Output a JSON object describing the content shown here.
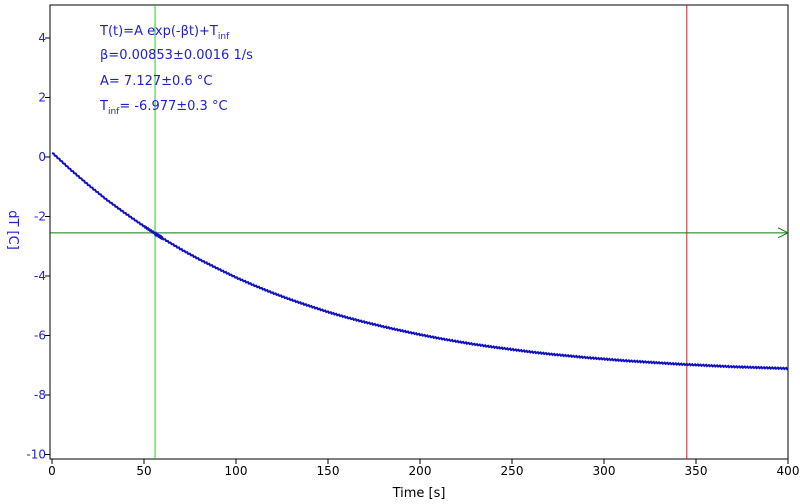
{
  "chart_data": {
    "type": "line",
    "title": "",
    "xlabel": "Time [s]",
    "ylabel": "dT [C]",
    "xlim": [
      0,
      400
    ],
    "ylim": [
      -10,
      5
    ],
    "xticks": [
      0,
      50,
      100,
      150,
      200,
      250,
      300,
      350,
      400
    ],
    "yticks": [
      -10,
      -8,
      -6,
      -4,
      -2,
      0,
      2,
      4
    ],
    "grid": false,
    "series": [
      {
        "color": "#1010c0",
        "x": [
          0,
          10,
          20,
          30,
          40,
          50,
          56,
          60,
          70,
          80,
          90,
          100,
          110,
          120,
          130,
          140,
          150,
          160,
          170,
          180,
          190,
          200,
          210,
          220,
          230,
          240,
          250,
          260,
          270,
          280,
          290,
          300,
          310,
          320,
          330,
          340,
          350,
          360,
          370,
          380,
          390,
          400
        ],
        "y": [
          0.15,
          -0.42,
          -0.95,
          -1.45,
          -1.9,
          -2.33,
          -2.57,
          -2.73,
          -3.1,
          -3.44,
          -3.75,
          -4.05,
          -4.32,
          -4.57,
          -4.8,
          -5.01,
          -5.21,
          -5.39,
          -5.55,
          -5.7,
          -5.84,
          -5.97,
          -6.09,
          -6.2,
          -6.3,
          -6.39,
          -6.47,
          -6.55,
          -6.62,
          -6.68,
          -6.74,
          -6.79,
          -6.84,
          -6.88,
          -6.92,
          -6.96,
          -6.99,
          -7.02,
          -7.05,
          -7.07,
          -7.09,
          -7.11
        ]
      }
    ],
    "cursors": [
      {
        "orientation": "vertical",
        "x": 56,
        "color": "#22cc22"
      },
      {
        "orientation": "vertical",
        "x": 345,
        "color": "#cc2222"
      },
      {
        "orientation": "horizontal",
        "y": -2.55,
        "color": "#117711"
      }
    ],
    "annotations": {
      "line1": {
        "main": "T(t)=A exp(-βt)+T",
        "sub": "inf"
      },
      "line2": "β=0.00853±0.0016 1/s",
      "line3": "A= 7.127±0.6 °C",
      "line4": {
        "main": "T",
        "sub": "inf",
        "rest": "= -6.977±0.3 °C"
      }
    },
    "colors": {
      "axis": "#000000",
      "ytick_labels": "#1f1fd1",
      "ylabel": "#1f1fd1",
      "xtick_labels": "#000000",
      "annotation_text": "#1f1fd1"
    }
  }
}
